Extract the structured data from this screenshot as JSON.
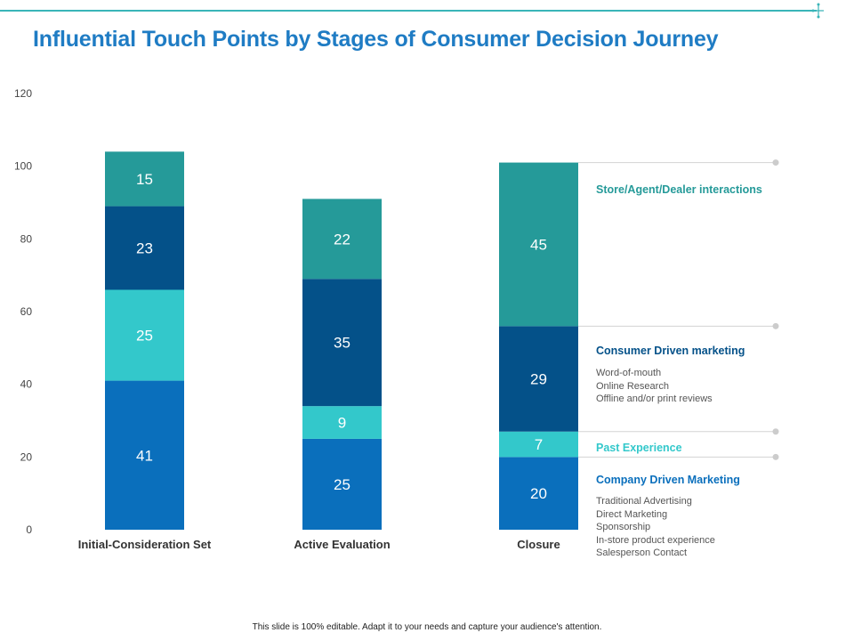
{
  "slide": {
    "title": "Influential Touch Points by Stages of Consumer Decision Journey",
    "footer": "This slide is 100% editable.  Adapt it to your needs and capture your audience's attention."
  },
  "chart_data": {
    "type": "bar",
    "stacked": true,
    "title": "Influential Touch Points by Stages of Consumer Decision Journey",
    "categories": [
      "Initial-Consideration Set",
      "Active Evaluation",
      "Closure"
    ],
    "ylim": [
      0,
      120
    ],
    "yticks": [
      0,
      20,
      40,
      60,
      80,
      100,
      120
    ],
    "xlabel": "",
    "ylabel": "",
    "grid": false,
    "series": [
      {
        "name": "Company Driven Marketing",
        "color": "#0a6fbc",
        "values": [
          41,
          25,
          20
        ]
      },
      {
        "name": "Past Experience",
        "color": "#33c8cb",
        "values": [
          25,
          9,
          7
        ]
      },
      {
        "name": "Consumer Driven marketing",
        "color": "#045189",
        "values": [
          23,
          35,
          29
        ]
      },
      {
        "name": "Store/Agent/Dealer interactions",
        "color": "#259a99",
        "values": [
          15,
          22,
          45
        ]
      }
    ]
  },
  "legend": {
    "store": {
      "title": "Store/Agent/Dealer interactions",
      "color": "#259a99"
    },
    "consumer": {
      "title": "Consumer Driven marketing",
      "color": "#045189",
      "details": [
        "Word-of-mouth",
        "Online Research",
        "Offline and/or print reviews"
      ]
    },
    "past": {
      "title": "Past Experience",
      "color": "#33c8cb"
    },
    "company": {
      "title": "Company Driven Marketing",
      "color": "#0a6fbc",
      "details": [
        "Traditional Advertising",
        "Direct Marketing",
        "Sponsorship",
        "In-store product experience",
        "Salesperson Contact"
      ]
    }
  }
}
